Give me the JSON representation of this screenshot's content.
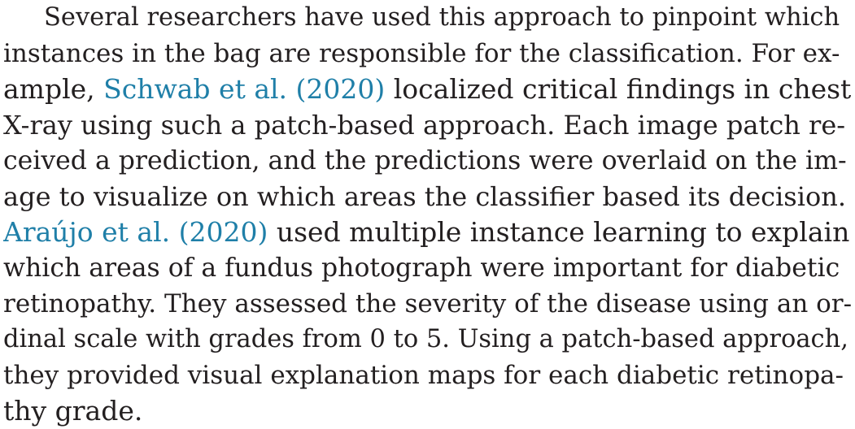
{
  "paragraph": {
    "lines": [
      {
        "text": "Several researchers have used this approach to pinpoint which"
      },
      {
        "text": "instances in the bag are responsible for the classification. For ex-"
      },
      {
        "pre": "ample, ",
        "cite": "Schwab et al. (2020)",
        "post": " localized critical findings in chest"
      },
      {
        "text": "X-ray using such a patch-based approach. Each image patch re-"
      },
      {
        "text": "ceived a prediction, and the predictions were overlaid on the im-"
      },
      {
        "text": "age to visualize on which areas the classifier based its decision."
      },
      {
        "cite": "Araújo et al. (2020)",
        "post": " used multiple instance learning to explain"
      },
      {
        "text": "which areas of a fundus photograph were important for diabetic"
      },
      {
        "text": "retinopathy. They assessed the severity of the disease using an or-"
      },
      {
        "text": "dinal scale with grades from 0 to 5. Using a patch-based approach,"
      },
      {
        "text": "they provided visual explanation maps for each diabetic retinopa-"
      },
      {
        "text": "thy grade."
      }
    ]
  },
  "colors": {
    "text": "#231f20",
    "citation": "#1f7fa8"
  }
}
